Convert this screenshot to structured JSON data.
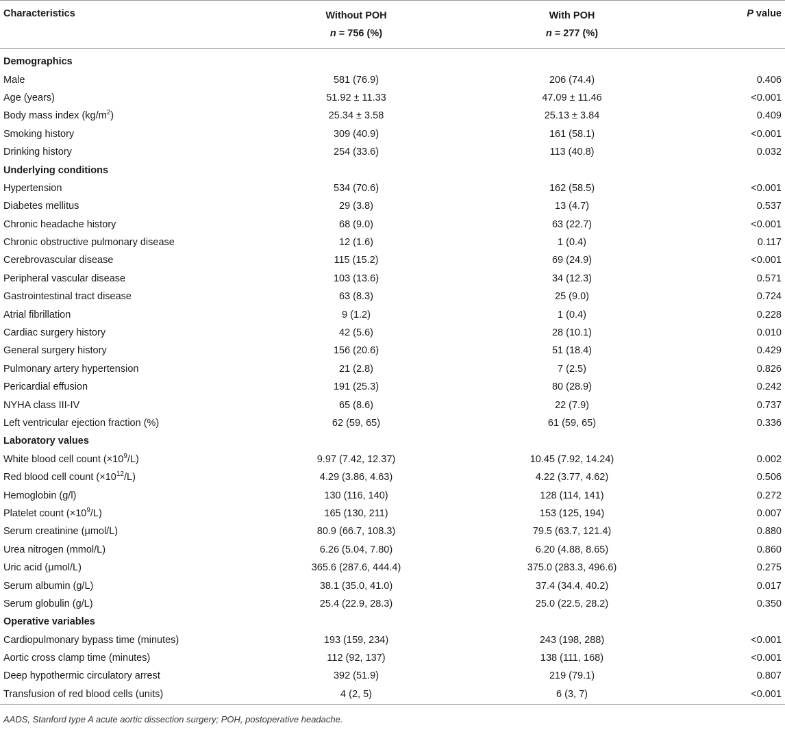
{
  "header": {
    "characteristics": "Characteristics",
    "without_line1": "Without POH",
    "without_line2": "n = 756 (%)",
    "with_line1": "With POH",
    "with_line2": "n = 277 (%)",
    "p_value": "P value"
  },
  "rows": [
    {
      "type": "section",
      "label": "Demographics"
    },
    {
      "type": "row",
      "label": "Male",
      "without": "581 (76.9)",
      "with": "206 (74.4)",
      "p": "0.406"
    },
    {
      "type": "row",
      "label": "Age (years)",
      "without": "51.92 ± 11.33",
      "with": "47.09 ± 11.46",
      "p": "<0.001"
    },
    {
      "type": "row",
      "label": "Body mass index (kg/m",
      "sup": "2",
      "label_tail": ")",
      "without": "25.34 ± 3.58",
      "with": "25.13 ± 3.84",
      "p": "0.409"
    },
    {
      "type": "row",
      "label": "Smoking history",
      "without": "309 (40.9)",
      "with": "161 (58.1)",
      "p": "<0.001"
    },
    {
      "type": "row",
      "label": "Drinking history",
      "without": "254 (33.6)",
      "with": "113 (40.8)",
      "p": "0.032"
    },
    {
      "type": "section",
      "label": "Underlying conditions"
    },
    {
      "type": "row",
      "label": "Hypertension",
      "without": "534 (70.6)",
      "with": "162 (58.5)",
      "p": "<0.001"
    },
    {
      "type": "row",
      "label": "Diabetes mellitus",
      "without": "29 (3.8)",
      "with": "13 (4.7)",
      "p": "0.537"
    },
    {
      "type": "row",
      "label": "Chronic headache history",
      "without": "68 (9.0)",
      "with": "63 (22.7)",
      "p": "<0.001"
    },
    {
      "type": "row",
      "label": "Chronic obstructive pulmonary disease",
      "without": "12 (1.6)",
      "with": "1 (0.4)",
      "p": "0.117"
    },
    {
      "type": "row",
      "label": "Cerebrovascular disease",
      "without": "115 (15.2)",
      "with": "69 (24.9)",
      "p": "<0.001"
    },
    {
      "type": "row",
      "label": "Peripheral vascular disease",
      "without": "103 (13.6)",
      "with": "34 (12.3)",
      "p": "0.571"
    },
    {
      "type": "row",
      "label": "Gastrointestinal tract disease",
      "without": "63 (8.3)",
      "with": "25 (9.0)",
      "p": "0.724"
    },
    {
      "type": "row",
      "label": "Atrial fibrillation",
      "without": "9 (1.2)",
      "with": "1 (0.4)",
      "p": "0.228"
    },
    {
      "type": "row",
      "label": "Cardiac surgery history",
      "without": "42 (5.6)",
      "with": "28 (10.1)",
      "p": "0.010"
    },
    {
      "type": "row",
      "label": "General surgery history",
      "without": "156 (20.6)",
      "with": "51 (18.4)",
      "p": "0.429"
    },
    {
      "type": "row",
      "label": "Pulmonary artery hypertension",
      "without": "21 (2.8)",
      "with": "7 (2.5)",
      "p": "0.826"
    },
    {
      "type": "row",
      "label": "Pericardial effusion",
      "without": "191 (25.3)",
      "with": "80 (28.9)",
      "p": "0.242"
    },
    {
      "type": "row",
      "label": "NYHA class III-IV",
      "without": "65 (8.6)",
      "with": "22 (7.9)",
      "p": "0.737"
    },
    {
      "type": "row",
      "label": "Left ventricular ejection fraction (%)",
      "without": "62 (59, 65)",
      "with": "61 (59, 65)",
      "p": "0.336"
    },
    {
      "type": "section",
      "label": "Laboratory values"
    },
    {
      "type": "row",
      "label": "White blood cell count (×10",
      "sup": "9",
      "label_tail": "/L)",
      "without": "9.97 (7.42, 12.37)",
      "with": "10.45 (7.92, 14.24)",
      "p": "0.002"
    },
    {
      "type": "row",
      "label": "Red blood cell count (×10",
      "sup": "12",
      "label_tail": "/L)",
      "without": "4.29 (3.86, 4.63)",
      "with": "4.22 (3.77, 4.62)",
      "p": "0.506"
    },
    {
      "type": "row",
      "label": "Hemoglobin (g/l)",
      "without": "130 (116, 140)",
      "with": "128 (114, 141)",
      "p": "0.272"
    },
    {
      "type": "row",
      "label": "Platelet count (×10",
      "sup": "9",
      "label_tail": "/L)",
      "without": "165 (130, 211)",
      "with": "153 (125, 194)",
      "p": "0.007"
    },
    {
      "type": "row",
      "label": "Serum creatinine (μmol/L)",
      "without": "80.9 (66.7, 108.3)",
      "with": "79.5 (63.7, 121.4)",
      "p": "0.880"
    },
    {
      "type": "row",
      "label": "Urea nitrogen (mmol/L)",
      "without": "6.26 (5.04, 7.80)",
      "with": "6.20 (4.88, 8.65)",
      "p": "0.860"
    },
    {
      "type": "row",
      "label": "Uric acid (μmol/L)",
      "without": "365.6 (287.6, 444.4)",
      "with": "375.0 (283.3, 496.6)",
      "p": "0.275"
    },
    {
      "type": "row",
      "label": "Serum albumin (g/L)",
      "without": "38.1 (35.0, 41.0)",
      "with": "37.4 (34.4, 40.2)",
      "p": "0.017"
    },
    {
      "type": "row",
      "label": "Serum globulin (g/L)",
      "without": "25.4 (22.9, 28.3)",
      "with": "25.0 (22.5, 28.2)",
      "p": "0.350"
    },
    {
      "type": "section",
      "label": "Operative variables"
    },
    {
      "type": "row",
      "label": "Cardiopulmonary bypass time (minutes)",
      "without": "193 (159, 234)",
      "with": "243 (198, 288)",
      "p": "<0.001"
    },
    {
      "type": "row",
      "label": "Aortic cross clamp time (minutes)",
      "without": "112 (92, 137)",
      "with": "138 (111, 168)",
      "p": "<0.001"
    },
    {
      "type": "row",
      "label": "Deep hypothermic circulatory arrest",
      "without": "392 (51.9)",
      "with": "219 (79.1)",
      "p": "0.807"
    },
    {
      "type": "row",
      "label": "Transfusion of red blood cells (units)",
      "without": "4 (2, 5)",
      "with": "6 (3, 7)",
      "p": "<0.001"
    }
  ],
  "footnote": "AADS, Stanford type A acute aortic dissection surgery; POH, postoperative headache."
}
